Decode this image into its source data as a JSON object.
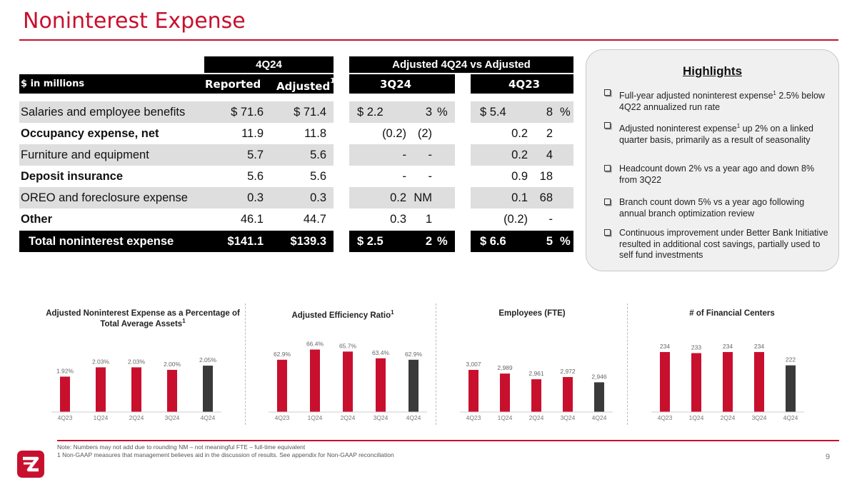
{
  "page": {
    "title": "Noninterest Expense",
    "page_number": "9"
  },
  "table": {
    "unit_label": "$ in millions",
    "group_4q24": "4Q24",
    "group_adj": "Adjusted 4Q24 vs Adjusted",
    "col_reported": "Reported",
    "col_adjusted": "Adjusted",
    "col_adjusted_sup": "1",
    "col_3q24": "3Q24",
    "col_4q23": "4Q23",
    "rows": [
      {
        "label": "Salaries and employee benefits",
        "reported": "$ 71.6",
        "adjusted": "$ 71.4",
        "q3_amt": "$ 2.2",
        "q3_pct": "3",
        "q3_pct_sym": "%",
        "q4_amt": "$ 5.4",
        "q4_pct": "8",
        "q4_pct_sym": "%"
      },
      {
        "label": "Occupancy expense, net",
        "reported": "11.9",
        "adjusted": "11.8",
        "q3_amt": "(0.2)",
        "q3_pct": "(2)",
        "q3_pct_sym": "",
        "q4_amt": "0.2",
        "q4_pct": "2",
        "q4_pct_sym": ""
      },
      {
        "label": "Furniture and equipment",
        "reported": "5.7",
        "adjusted": "5.6",
        "q3_amt": "-",
        "q3_pct": "-",
        "q3_pct_sym": "",
        "q4_amt": "0.2",
        "q4_pct": "4",
        "q4_pct_sym": ""
      },
      {
        "label": "Deposit insurance",
        "reported": "5.6",
        "adjusted": "5.6",
        "q3_amt": "-",
        "q3_pct": "-",
        "q3_pct_sym": "",
        "q4_amt": "0.9",
        "q4_pct": "18",
        "q4_pct_sym": ""
      },
      {
        "label": "OREO and foreclosure expense",
        "reported": "0.3",
        "adjusted": "0.3",
        "q3_amt": "0.2",
        "q3_pct": "NM",
        "q3_pct_sym": "",
        "q4_amt": "0.1",
        "q4_pct": "68",
        "q4_pct_sym": ""
      },
      {
        "label": "Other",
        "reported": "46.1",
        "adjusted": "44.7",
        "q3_amt": "0.3",
        "q3_pct": "1",
        "q3_pct_sym": "",
        "q4_amt": "(0.2)",
        "q4_pct": "-",
        "q4_pct_sym": ""
      },
      {
        "label": "Total noninterest expense",
        "reported": "$141.1",
        "adjusted": "$139.3",
        "q3_amt": "$ 2.5",
        "q3_pct": "2",
        "q3_pct_sym": "%",
        "q4_amt": "$ 6.6",
        "q4_pct": "5",
        "q4_pct_sym": "%"
      }
    ]
  },
  "highlights": {
    "title": "Highlights",
    "items": [
      {
        "pre": "Full-year adjusted noninterest expense",
        "sup": "1",
        "post": " 2.5% below 4Q22 annualized run rate"
      },
      {
        "pre": "Adjusted noninterest expense",
        "sup": "1",
        "post": " up 2% on a linked quarter basis, primarily as a result of seasonality"
      },
      {
        "pre": "Headcount down 2% vs a year ago and down 8% from 3Q22",
        "sup": "",
        "post": ""
      },
      {
        "pre": "Branch count down 5% vs a year ago following annual branch optimization review",
        "sup": "",
        "post": ""
      },
      {
        "pre": "Continuous improvement under Better Bank Initiative resulted in additional cost savings, partially used to self fund investments",
        "sup": "",
        "post": ""
      }
    ]
  },
  "colors": {
    "accent": "#c8102e",
    "current_bar": "#3a3a3a",
    "prior_bar": "#c8102e"
  },
  "chart_data": [
    {
      "type": "bar",
      "title": "Adjusted Noninterest Expense as a Percentage of Total Average Assets",
      "title_sup": "1",
      "categories": [
        "4Q23",
        "1Q24",
        "2Q24",
        "3Q24",
        "4Q24"
      ],
      "values": [
        1.92,
        2.03,
        2.03,
        2.0,
        2.05
      ],
      "labels": [
        "1.92%",
        "2.03%",
        "2.03%",
        "2.00%",
        "2.05%"
      ],
      "ylim": [
        1.5,
        2.2
      ]
    },
    {
      "type": "bar",
      "title": "Adjusted Efficiency Ratio",
      "title_sup": "1",
      "categories": [
        "4Q23",
        "1Q24",
        "2Q24",
        "3Q24",
        "4Q24"
      ],
      "values": [
        62.9,
        66.4,
        65.7,
        63.4,
        62.9
      ],
      "labels": [
        "62.9%",
        "66.4%",
        "65.7%",
        "63.4%",
        "62.9%"
      ],
      "ylim": [
        45,
        68
      ]
    },
    {
      "type": "bar",
      "title": "Employees (FTE)",
      "title_sup": "",
      "categories": [
        "4Q23",
        "1Q24",
        "2Q24",
        "3Q24",
        "4Q24"
      ],
      "values": [
        3007,
        2989,
        2961,
        2972,
        2946
      ],
      "labels": [
        "3,007",
        "2,989",
        "2,961",
        "2,972",
        "2,946"
      ],
      "ylim": [
        2800,
        3030
      ]
    },
    {
      "type": "bar",
      "title": "# of Financial Centers",
      "title_sup": "",
      "categories": [
        "4Q23",
        "1Q24",
        "2Q24",
        "3Q24",
        "4Q24"
      ],
      "values": [
        234,
        233,
        234,
        234,
        222
      ],
      "labels": [
        "234",
        "233",
        "234",
        "234",
        "222"
      ],
      "ylim": [
        180,
        238
      ]
    }
  ],
  "footnotes": {
    "line1": "Note: Numbers may not add due to rounding   NM – not meaningful   FTE – full-time equivalent",
    "line2": "1   Non-GAAP measures that management believes aid in the discussion of results. See appendix for Non-GAAP reconciliation"
  }
}
